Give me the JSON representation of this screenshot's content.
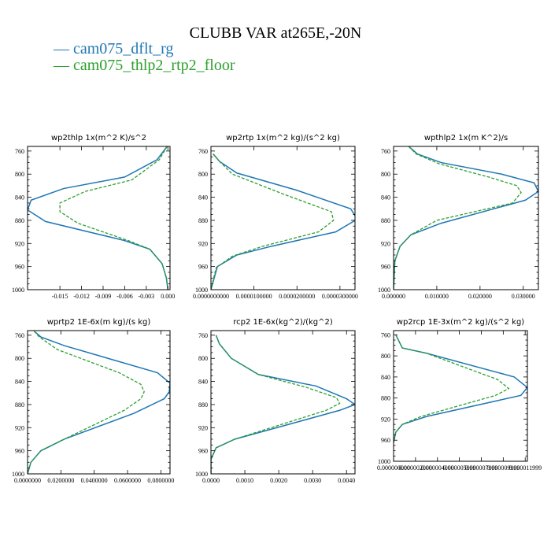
{
  "title": "CLUBB VAR at265E,-20N",
  "legend": [
    {
      "label": "cam075_dflt_rg",
      "color": "#1f77b4",
      "dash": "solid"
    },
    {
      "label": "cam075_thlp2_rtp2_floor",
      "color": "#2ca02c",
      "dash": "dashed"
    }
  ],
  "chart_data": [
    {
      "type": "line",
      "title": "wp2thlp   1x(m^2 K)/s^2",
      "xlim": [
        -0.0195,
        0.0003
      ],
      "ylim": [
        1000,
        752
      ],
      "x_ticks": [
        -0.015,
        -0.012,
        -0.009,
        -0.006,
        -0.003,
        0.0
      ],
      "x_tick_labels": [
        "-0.015",
        "-0.012",
        "-0.009",
        "-0.006",
        "-0.003",
        "0.000"
      ],
      "y_ticks": [
        760,
        800,
        840,
        880,
        920,
        960,
        1000
      ],
      "y_tick_labels": [
        "760",
        "800",
        "840",
        "880",
        "920",
        "960",
        "1000"
      ],
      "series": [
        {
          "name": "cam075_dflt_rg",
          "color": "#1f77b4",
          "x": [
            -0.0001,
            -0.0015,
            -0.006,
            -0.0145,
            -0.019,
            -0.0195,
            -0.017,
            -0.006,
            -0.0025,
            -0.0008,
            -0.0002,
            0.0
          ],
          "y": [
            752,
            775,
            805,
            825,
            845,
            862,
            882,
            915,
            930,
            955,
            980,
            1000
          ]
        },
        {
          "name": "cam075_thlp2_rtp2_floor",
          "color": "#2ca02c",
          "x": [
            -0.0001,
            -0.0012,
            -0.005,
            -0.0115,
            -0.015,
            -0.015,
            -0.0125,
            -0.0055,
            -0.0025,
            -0.0008,
            -0.0002,
            0.0
          ],
          "y": [
            752,
            775,
            810,
            830,
            850,
            865,
            885,
            915,
            930,
            955,
            980,
            1000
          ]
        }
      ]
    },
    {
      "type": "line",
      "title": "wp2rtp   1x(m^2 kg)/(s^2 kg)",
      "xlim": [
        0.0,
        3.35e-05
      ],
      "ylim": [
        1000,
        752
      ],
      "x_ticks": [
        0.0,
        1e-05,
        2e-05,
        3e-05
      ],
      "x_tick_labels": [
        "0.0000000000",
        "0.0000100000",
        "0.0000200000",
        "0.0000300000"
      ],
      "y_ticks": [
        760,
        800,
        840,
        880,
        920,
        960,
        1000
      ],
      "y_tick_labels": [
        "760",
        "800",
        "840",
        "880",
        "920",
        "960",
        "1000"
      ],
      "series": [
        {
          "name": "cam075_dflt_rg",
          "color": "#1f77b4",
          "x": [
            5e-07,
            2e-06,
            6e-06,
            2e-05,
            3.25e-05,
            3.4e-05,
            2.9e-05,
            1.4e-05,
            6e-06,
            1.5e-06,
            0.0
          ],
          "y": [
            765,
            778,
            798,
            828,
            860,
            878,
            900,
            925,
            940,
            960,
            1000
          ]
        },
        {
          "name": "cam075_thlp2_rtp2_floor",
          "color": "#2ca02c",
          "x": [
            5e-07,
            2e-06,
            5e-06,
            1.7e-05,
            2.8e-05,
            2.85e-05,
            2.5e-05,
            1.2e-05,
            5e-06,
            1.2e-06,
            0.0
          ],
          "y": [
            765,
            778,
            800,
            835,
            865,
            880,
            900,
            925,
            942,
            962,
            1000
          ]
        }
      ]
    },
    {
      "type": "line",
      "title": "wpthlp2   1x(m K^2)/s",
      "xlim": [
        0.0,
        0.0335
      ],
      "ylim": [
        1000,
        752
      ],
      "x_ticks": [
        0.0,
        0.01,
        0.02,
        0.03
      ],
      "x_tick_labels": [
        "0.000000",
        "0.010000",
        "0.020000",
        "0.030000"
      ],
      "y_ticks": [
        760,
        800,
        840,
        880,
        920,
        960,
        1000
      ],
      "y_tick_labels": [
        "760",
        "800",
        "840",
        "880",
        "920",
        "960",
        "1000"
      ],
      "series": [
        {
          "name": "cam075_dflt_rg",
          "color": "#1f77b4",
          "x": [
            0.0035,
            0.0055,
            0.011,
            0.025,
            0.0325,
            0.0335,
            0.0305,
            0.011,
            0.004,
            0.0015,
            0.0003,
            0.0
          ],
          "y": [
            752,
            765,
            780,
            800,
            815,
            830,
            845,
            885,
            905,
            925,
            950,
            1000
          ]
        },
        {
          "name": "cam075_thlp2_rtp2_floor",
          "color": "#2ca02c",
          "x": [
            0.0035,
            0.0052,
            0.0105,
            0.022,
            0.0285,
            0.0295,
            0.0275,
            0.01,
            0.004,
            0.0015,
            0.0003,
            0.0
          ],
          "y": [
            752,
            765,
            782,
            805,
            820,
            832,
            850,
            880,
            905,
            925,
            950,
            1000
          ]
        }
      ]
    },
    {
      "type": "line",
      "title": "wprtp2   1E-6x(m kg)/(s kg)",
      "xlim": [
        0.0,
        0.0855
      ],
      "ylim": [
        1000,
        752
      ],
      "x_ticks": [
        0.0,
        0.02,
        0.04,
        0.06,
        0.08
      ],
      "x_tick_labels": [
        "0.0000000",
        "0.0200000",
        "0.0400000",
        "0.0600000",
        "0.0800000"
      ],
      "y_ticks": [
        760,
        800,
        840,
        880,
        920,
        960,
        1000
      ],
      "y_tick_labels": [
        "760",
        "800",
        "840",
        "880",
        "920",
        "960",
        "1000"
      ],
      "series": [
        {
          "name": "cam075_dflt_rg",
          "color": "#1f77b4",
          "x": [
            0.004,
            0.008,
            0.022,
            0.078,
            0.0855,
            0.085,
            0.082,
            0.064,
            0.022,
            0.008,
            0.002,
            0.0
          ],
          "y": [
            753,
            763,
            778,
            825,
            843,
            858,
            870,
            895,
            940,
            960,
            980,
            1000
          ]
        },
        {
          "name": "cam075_thlp2_rtp2_floor",
          "color": "#2ca02c",
          "x": [
            0.004,
            0.007,
            0.018,
            0.055,
            0.068,
            0.07,
            0.068,
            0.058,
            0.022,
            0.008,
            0.002,
            0.0
          ],
          "y": [
            753,
            763,
            785,
            825,
            845,
            858,
            870,
            890,
            940,
            960,
            980,
            1000
          ]
        }
      ]
    },
    {
      "type": "line",
      "title": "rcp2   1E-6x(kg^2)/(kg^2)",
      "xlim": [
        0.0,
        0.00425
      ],
      "ylim": [
        1000,
        752
      ],
      "x_ticks": [
        0.0,
        0.001,
        0.002,
        0.003,
        0.004
      ],
      "x_tick_labels": [
        "0.0000",
        "0.0010",
        "0.0020",
        "0.0030",
        "0.0040"
      ],
      "y_ticks": [
        760,
        800,
        840,
        880,
        920,
        960,
        1000
      ],
      "y_tick_labels": [
        "760",
        "800",
        "840",
        "880",
        "920",
        "960",
        "1000"
      ],
      "series": [
        {
          "name": "cam075_dflt_rg",
          "color": "#1f77b4",
          "x": [
            0.00015,
            0.00025,
            0.0006,
            0.0014,
            0.0031,
            0.004,
            0.00425,
            0.0038,
            0.0007,
            0.00015,
            0.0,
            0.0
          ],
          "y": [
            760,
            775,
            800,
            828,
            848,
            870,
            880,
            890,
            940,
            955,
            975,
            1000
          ]
        },
        {
          "name": "cam075_thlp2_rtp2_floor",
          "color": "#2ca02c",
          "x": [
            0.00015,
            0.00025,
            0.0006,
            0.0014,
            0.0028,
            0.0037,
            0.0038,
            0.0034,
            0.0007,
            0.00015,
            0.0,
            0.0
          ],
          "y": [
            760,
            775,
            800,
            828,
            850,
            868,
            878,
            890,
            940,
            955,
            975,
            1000
          ]
        }
      ]
    },
    {
      "type": "line",
      "title": "wp2rcp   1E-3x(m^2 kg)/(s^2 kg)",
      "xlim": [
        0.0,
        1.22e-05
      ],
      "ylim": [
        1000,
        752
      ],
      "x_ticks": [
        0.0,
        2e-06,
        4e-06,
        6e-06,
        8e-06,
        1e-05,
        1.2e-05
      ],
      "x_tick_labels": [
        "0.000000000",
        "0.000002000",
        "0.000004000",
        "0.000005999",
        "0.000007999",
        "0.000009999",
        "0.000011999"
      ],
      "y_ticks": [
        760,
        800,
        840,
        880,
        920,
        960,
        1000
      ],
      "y_tick_labels": [
        "760",
        "800",
        "840",
        "880",
        "920",
        "960",
        "1000"
      ],
      "series": [
        {
          "name": "cam075_dflt_rg",
          "color": "#1f77b4",
          "x": [
            2e-07,
            8e-07,
            3e-06,
            1.1e-05,
            1.22e-05,
            1.16e-05,
            3e-06,
            8e-07,
            2e-07,
            0.0
          ],
          "y": [
            760,
            785,
            795,
            840,
            860,
            875,
            915,
            930,
            945,
            965
          ]
        },
        {
          "name": "cam075_thlp2_rtp2_floor",
          "color": "#2ca02c",
          "x": [
            2e-07,
            8e-07,
            3e-06,
            9.5e-06,
            1.05e-05,
            9.3e-06,
            2.5e-06,
            8e-07,
            2e-07,
            0.0
          ],
          "y": [
            760,
            785,
            795,
            845,
            862,
            875,
            915,
            930,
            945,
            965
          ]
        }
      ]
    }
  ]
}
